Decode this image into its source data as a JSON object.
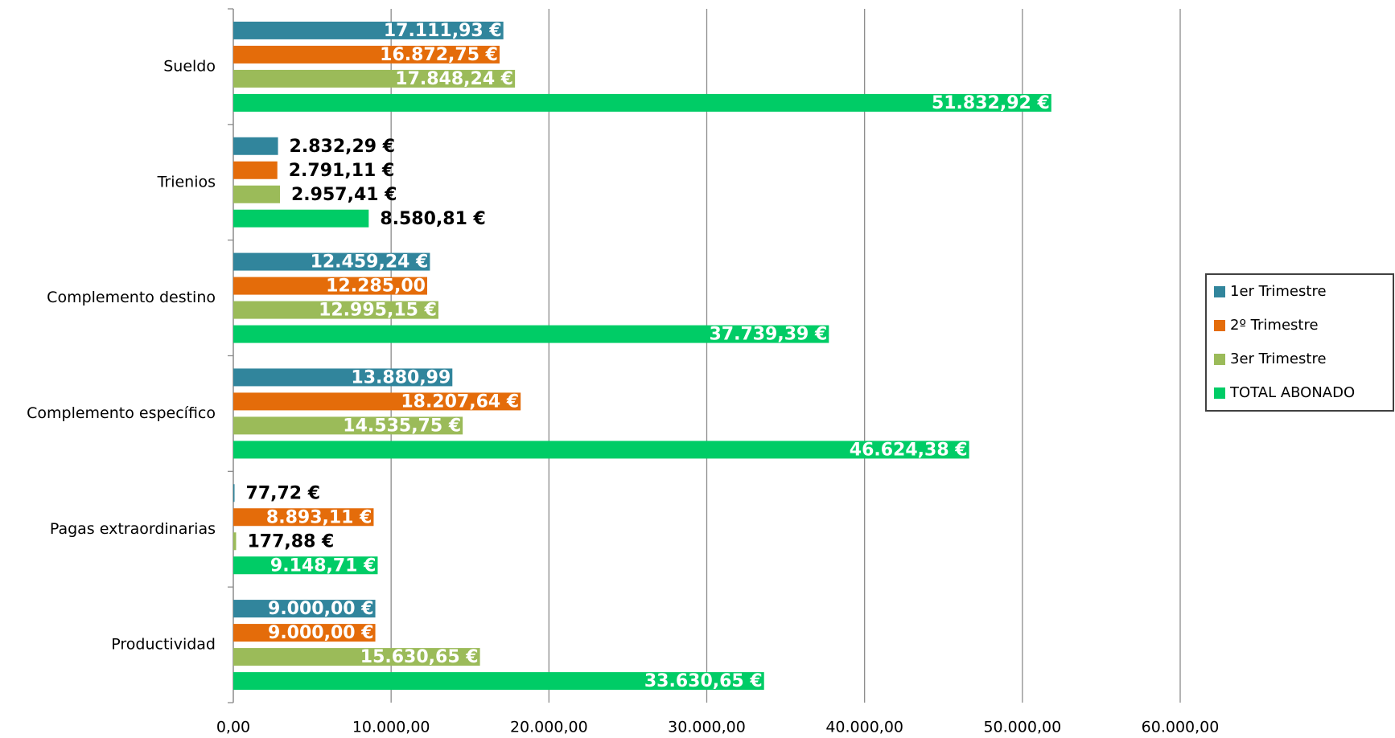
{
  "chart_data": {
    "type": "hbar",
    "categories": [
      "Sueldo",
      "Trienios",
      "Complemento destino",
      "Complemento específico",
      "Pagas extraordinarias",
      "Productividad"
    ],
    "series": [
      {
        "name": "1er Trimestre",
        "color": "#31859c",
        "values": [
          17111.93,
          2832.29,
          12459.24,
          13880.99,
          77.72,
          9000.0
        ],
        "value_labels": [
          "17.111,93 €",
          "2.832,29 €",
          "12.459,24 €",
          "13.880,99",
          "77,72 €",
          "9.000,00 €"
        ]
      },
      {
        "name": "2º Trimestre",
        "color": "#e46c0a",
        "values": [
          16872.75,
          2791.11,
          12285.0,
          18207.64,
          8893.11,
          9000.0
        ],
        "value_labels": [
          "16.872,75 €",
          "2.791,11 €",
          "12.285,00",
          "18.207,64 €",
          "8.893,11 €",
          "9.000,00 €"
        ]
      },
      {
        "name": "3er Trimestre",
        "color": "#9bbb59",
        "values": [
          17848.24,
          2957.41,
          12995.15,
          14535.75,
          177.88,
          15630.65
        ],
        "value_labels": [
          "17.848,24 €",
          "2.957,41 €",
          "12.995,15 €",
          "14.535,75 €",
          "177,88 €",
          "15.630,65 €"
        ]
      },
      {
        "name": "TOTAL ABONADO",
        "color": "#00cc66",
        "values": [
          51832.92,
          8580.81,
          37739.39,
          46624.38,
          9148.71,
          33630.65
        ],
        "value_labels": [
          "51.832,92 €",
          "8.580,81 €",
          "37.739,39 €",
          "46.624,38 €",
          "9.148,71 €",
          "33.630,65 €"
        ]
      }
    ],
    "xlim": [
      0,
      60000
    ],
    "xticks": [
      {
        "value": 0,
        "label": "0,00"
      },
      {
        "value": 10000,
        "label": "10.000,00"
      },
      {
        "value": 20000,
        "label": "20.000,00"
      },
      {
        "value": 30000,
        "label": "30.000,00"
      },
      {
        "value": 40000,
        "label": "40.000,00"
      },
      {
        "value": 50000,
        "label": "50.000,00"
      },
      {
        "value": 60000,
        "label": "60.000,00"
      }
    ],
    "grid": true,
    "legend": "right"
  }
}
